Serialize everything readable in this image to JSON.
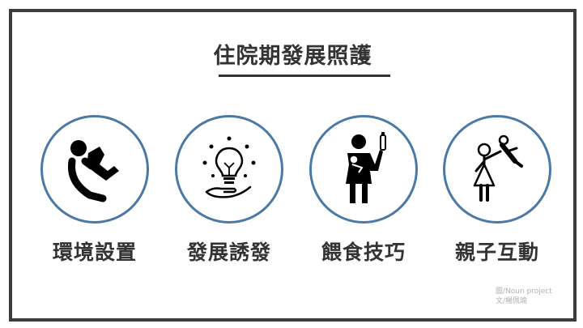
{
  "title": "住院期發展照護",
  "items": [
    {
      "label": "環境設置",
      "icon": "baby-falling-icon"
    },
    {
      "label": "發展誘發",
      "icon": "lightbulb-hand-icon"
    },
    {
      "label": "餵食技巧",
      "icon": "mother-bottle-icon"
    },
    {
      "label": "親子互動",
      "icon": "parent-child-play-icon"
    }
  ],
  "credit": {
    "line1": "圖/Noun project",
    "line2": "文/楊佩瑜"
  },
  "colors": {
    "circle_border": "#4b79a6",
    "text": "#333333",
    "frame": "#3c3c3c"
  }
}
